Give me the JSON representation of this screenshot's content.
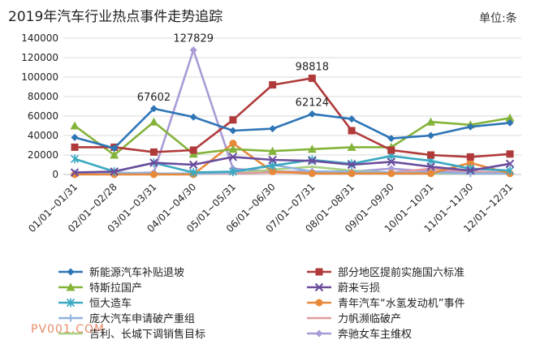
{
  "header": {
    "title": "2019年汽车行业热点事件走势追踪",
    "unit": "单位:条"
  },
  "watermark": "PV001.COM",
  "chart_data": {
    "type": "line",
    "categories": [
      "01/01~01/31",
      "02/01~02/28",
      "03/01~03/31",
      "04/01~04/30",
      "05/01~05/31",
      "06/01~06/30",
      "07/01~07/31",
      "08/01~08/31",
      "09/01~09/30",
      "10/01~10/31",
      "11/01~11/30",
      "12/01~12/31"
    ],
    "ylim": [
      0,
      140000
    ],
    "yticks": [
      0,
      20000,
      40000,
      60000,
      80000,
      100000,
      120000,
      140000
    ],
    "grid": true,
    "legend_position": "bottom",
    "series": [
      {
        "name": "新能源汽车补贴退坡",
        "color": "#2e75b6",
        "marker": "diamond",
        "values": [
          38000,
          27000,
          67602,
          59000,
          45000,
          47000,
          62124,
          57000,
          37000,
          40000,
          49000,
          53000
        ]
      },
      {
        "name": "部分地区提前实施国六标准",
        "color": "#b03a3a",
        "marker": "square",
        "values": [
          28000,
          28000,
          23000,
          25000,
          56000,
          92000,
          98818,
          45000,
          25000,
          20000,
          18000,
          21000
        ]
      },
      {
        "name": "特斯拉国产",
        "color": "#84b33a",
        "marker": "triangle",
        "values": [
          50000,
          20000,
          54000,
          21000,
          26000,
          24000,
          26000,
          28000,
          28000,
          54000,
          51000,
          58000
        ]
      },
      {
        "name": "蔚来亏损",
        "color": "#6a4c9c",
        "marker": "x",
        "values": [
          2000,
          3000,
          12000,
          10000,
          18000,
          15000,
          14000,
          10000,
          13000,
          8000,
          4000,
          11000
        ]
      },
      {
        "name": "恒大造车",
        "color": "#3aa8c1",
        "marker": "star",
        "values": [
          16000,
          3000,
          12000,
          2000,
          3000,
          9000,
          15000,
          11000,
          19000,
          14000,
          6000,
          4000
        ]
      },
      {
        "name": "青年汽车“水氢发动机”事件",
        "color": "#e8893a",
        "marker": "circle",
        "values": [
          0,
          0,
          0,
          0,
          32000,
          3000,
          1000,
          1000,
          1000,
          1000,
          12000,
          1000
        ]
      },
      {
        "name": "庞大汽车申请破产重组",
        "color": "#8fb3de",
        "marker": "plus",
        "values": [
          1000,
          2000,
          1000,
          1000,
          2000,
          10000,
          3000,
          3000,
          2000,
          2000,
          1000,
          1000
        ]
      },
      {
        "name": "力帆濒临破产",
        "color": "#e29aa0",
        "marker": "none",
        "values": [
          1000,
          1000,
          1000,
          1000,
          1000,
          2000,
          2000,
          2000,
          2000,
          6000,
          3000,
          2000
        ]
      },
      {
        "name": "吉利、长城下调销售目标",
        "color": "#a9cf82",
        "marker": "none",
        "values": [
          1000,
          1000,
          1000,
          1000,
          1000,
          5000,
          8000,
          4000,
          2000,
          1000,
          1000,
          1000
        ]
      },
      {
        "name": "奔驰女车主维权",
        "color": "#a99bd6",
        "marker": "diamond",
        "values": [
          1000,
          1000,
          2000,
          127829,
          6000,
          3000,
          3000,
          3000,
          6000,
          3000,
          2000,
          1000
        ]
      }
    ],
    "annotations": [
      {
        "series": 0,
        "index": 2,
        "text": "67602"
      },
      {
        "series": 9,
        "index": 3,
        "text": "127829"
      },
      {
        "series": 1,
        "index": 6,
        "text": "98818"
      },
      {
        "series": 0,
        "index": 6,
        "text": "62124"
      }
    ]
  }
}
